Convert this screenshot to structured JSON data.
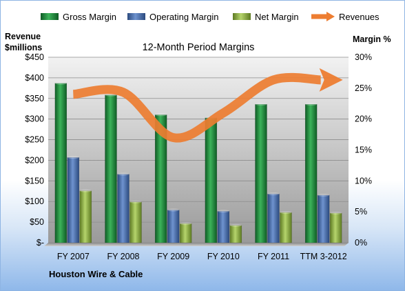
{
  "chart_data": {
    "type": "bar",
    "title": "12-Month Period Margins",
    "company": "Houston Wire & Cable",
    "left_axis_label_line1": "Revenue",
    "left_axis_label_line2": "$millions",
    "right_axis_label": "Margin %",
    "categories": [
      "FY 2007",
      "FY 2008",
      "FY 2009",
      "FY 2010",
      "FY 2011",
      "TTM 3-2012"
    ],
    "left_ticks": [
      "$-",
      "$50",
      "$100",
      "$150",
      "$200",
      "$250",
      "$300",
      "$350",
      "$400",
      "$450"
    ],
    "right_ticks": [
      "0%",
      "5%",
      "10%",
      "15%",
      "20%",
      "25%",
      "30%"
    ],
    "ylim_left": [
      0,
      450
    ],
    "ylim_right": [
      0,
      30
    ],
    "series": [
      {
        "name": "Gross Margin",
        "axis": "right",
        "color": "#1f8a3a",
        "values": [
          25.8,
          23.9,
          20.7,
          20.2,
          22.4,
          22.4
        ]
      },
      {
        "name": "Operating Margin",
        "axis": "right",
        "color": "#4a6ea9",
        "values": [
          13.8,
          11.1,
          5.3,
          5.1,
          7.9,
          7.7
        ]
      },
      {
        "name": "Net Margin",
        "axis": "right",
        "color": "#8fb146",
        "values": [
          8.4,
          6.6,
          3.1,
          2.8,
          4.9,
          4.8
        ]
      },
      {
        "name": "Revenues",
        "axis": "left",
        "type": "line",
        "color": "#ed7d31",
        "values": [
          360,
          365,
          255,
          315,
          395,
          395
        ]
      }
    ],
    "grid": true,
    "legend_position": "top"
  }
}
